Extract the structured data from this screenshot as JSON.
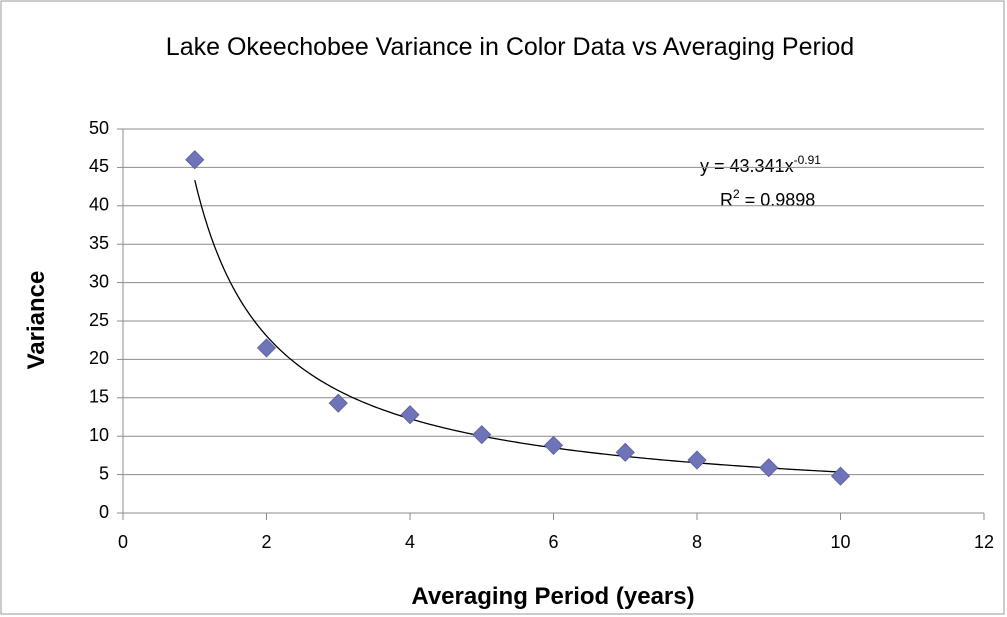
{
  "chart_data": {
    "type": "scatter",
    "title": "Lake Okeechobee Variance in Color Data vs Averaging Period",
    "x_label": "Averaging Period (years)",
    "y_label": "Variance",
    "x": [
      1,
      2,
      3,
      4,
      5,
      6,
      7,
      8,
      9,
      10
    ],
    "series": [
      {
        "name": "Variance",
        "color": "#6f74b8",
        "values": [
          46,
          21.5,
          14.3,
          12.8,
          10.2,
          8.8,
          7.9,
          6.9,
          5.9,
          4.8
        ]
      }
    ],
    "xlim": [
      0,
      12
    ],
    "xticks": [
      0,
      2,
      4,
      6,
      8,
      10,
      12
    ],
    "ylim": [
      0,
      50
    ],
    "yticks": [
      0,
      5,
      10,
      15,
      20,
      25,
      30,
      35,
      40,
      45,
      50
    ],
    "grid": true,
    "trendline": {
      "type": "power",
      "lhs": "y = ",
      "coefficient": 43.341,
      "variable": "x",
      "exponent": -0.91,
      "r_squared_symbol": "R",
      "r_squared_power": "2",
      "equals": " = ",
      "r_squared": 0.9898,
      "color": "#000000"
    }
  }
}
